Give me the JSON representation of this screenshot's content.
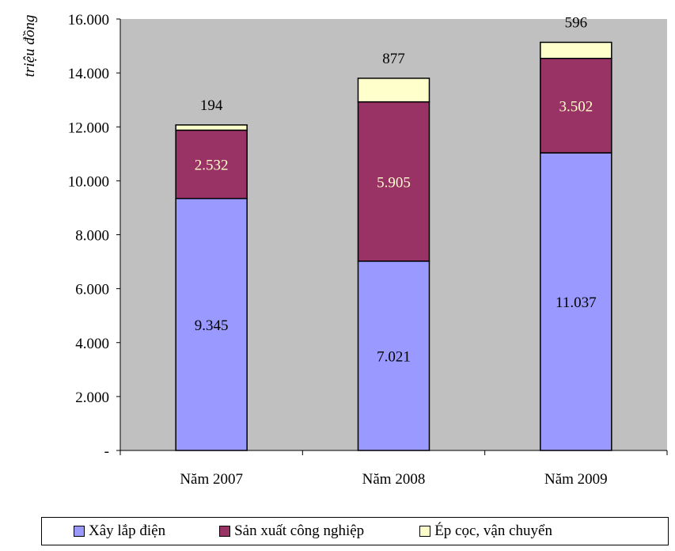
{
  "chart_data": {
    "type": "bar",
    "stacked": true,
    "categories": [
      "Năm 2007",
      "Năm 2008",
      "Năm 2009"
    ],
    "series": [
      {
        "name": "Xây lắp điện",
        "values": [
          9345,
          7021,
          11037
        ],
        "labels": [
          "9.345",
          "7.021",
          "11.037"
        ],
        "color": "#9999FF",
        "label_color": "#000000"
      },
      {
        "name": "Sản xuất công nghiệp",
        "values": [
          2532,
          5905,
          3502
        ],
        "labels": [
          "2.532",
          "5.905",
          "3.502"
        ],
        "color": "#993366",
        "label_color": "#FFFFCC"
      },
      {
        "name": "Ép cọc, vận chuyển",
        "values": [
          194,
          877,
          596
        ],
        "labels": [
          "194",
          "877",
          "596"
        ],
        "color": "#FFFFCC",
        "label_color": "#000000"
      }
    ],
    "ylabel": "triệu đồng",
    "ylim": [
      0,
      16000
    ],
    "yticks": [
      0,
      2000,
      4000,
      6000,
      8000,
      10000,
      12000,
      14000,
      16000
    ],
    "ytick_labels": [
      "-",
      "2.000",
      "4.000",
      "6.000",
      "8.000",
      "10.000",
      "12.000",
      "14.000",
      "16.000"
    ],
    "grid": false,
    "plot_background": "#C0C0C0",
    "legend_position": "bottom"
  }
}
